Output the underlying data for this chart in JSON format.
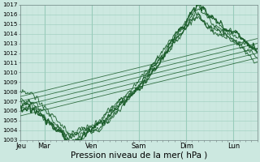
{
  "xlabel": "Pression niveau de la mer( hPa )",
  "bg_color": "#cce8e0",
  "plot_bg_color": "#cce8e0",
  "grid_major_color": "#99ccbb",
  "grid_minor_color": "#bbddd4",
  "line_color": "#1a5c2a",
  "ylim": [
    1003,
    1017
  ],
  "xlim": [
    0,
    240
  ],
  "day_labels": [
    "Jeu",
    "Mar",
    "Ven",
    "Sam",
    "Dim",
    "Lun"
  ],
  "day_positions": [
    0,
    24,
    72,
    120,
    168,
    216
  ],
  "ylabel_fontsize": 5.5,
  "xlabel_fontsize": 7.5
}
